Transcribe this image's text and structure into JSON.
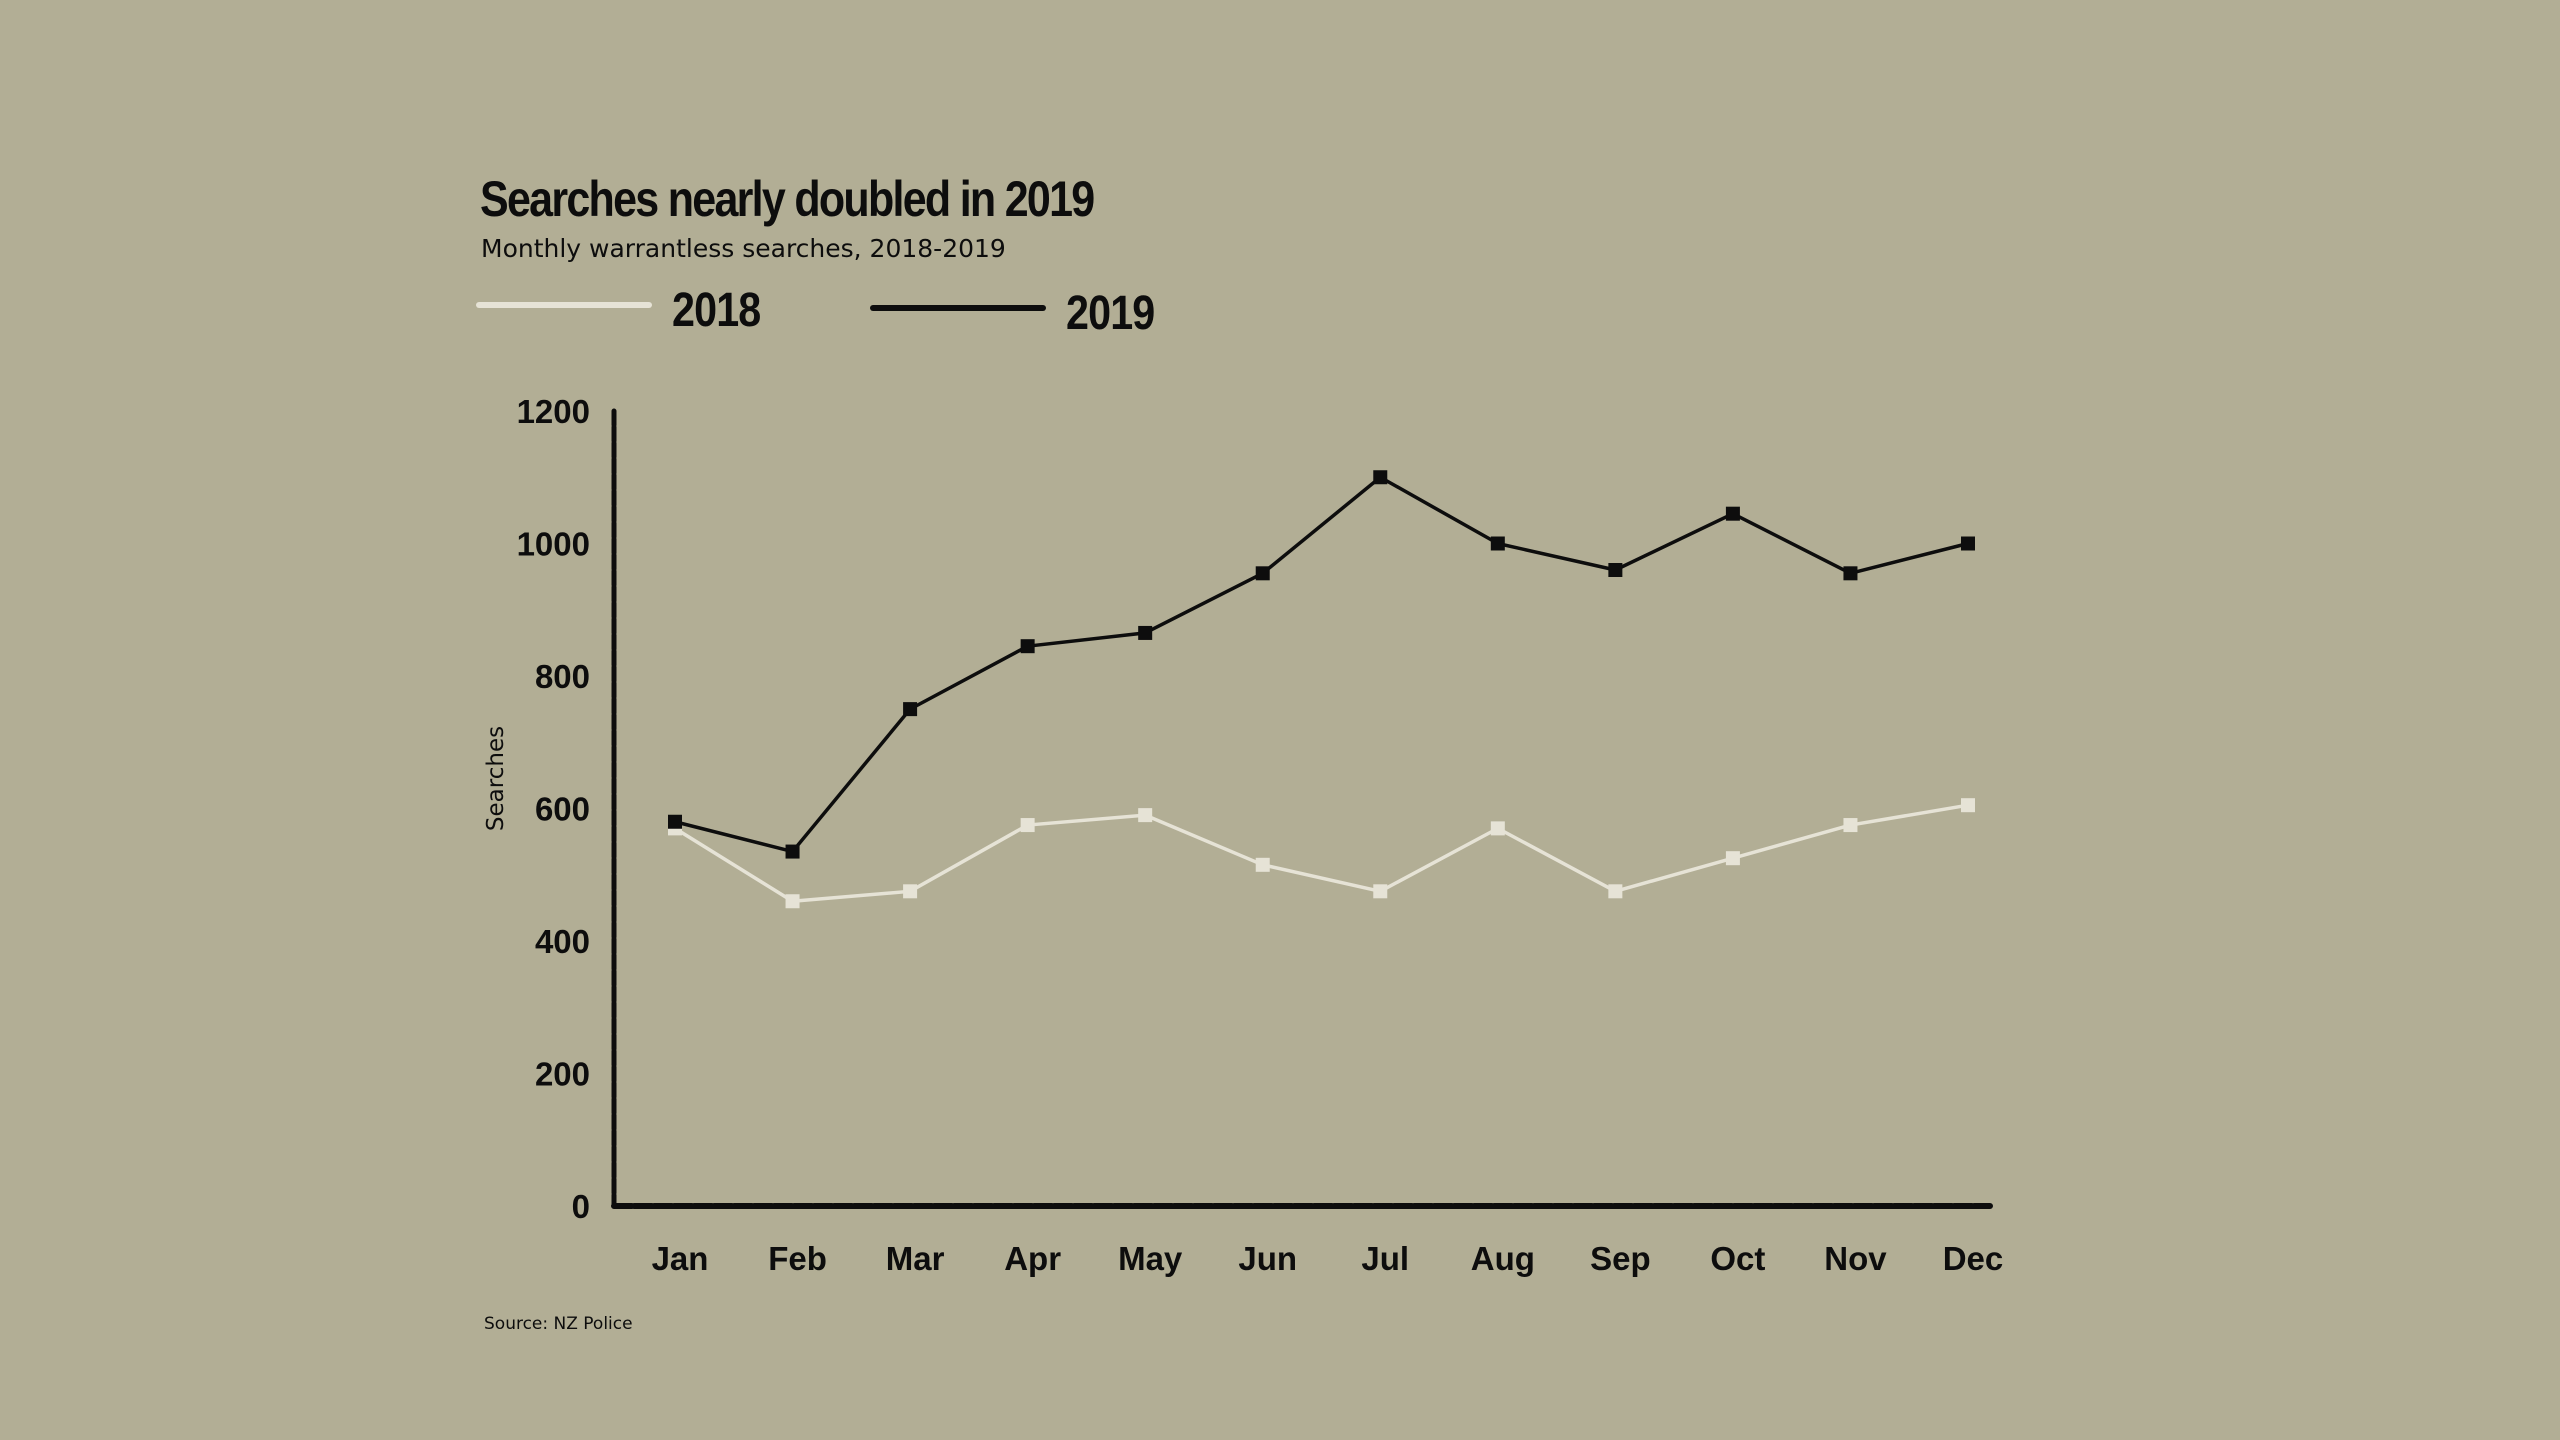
{
  "title": "Searches nearly doubled in 2019",
  "subtitle": "Monthly warrantless searches, 2018-2019",
  "source": "Source: NZ Police",
  "colors": {
    "background": "#b2ae95",
    "series_2018": "#e6e3d6",
    "series_2019": "#0d0d0d"
  },
  "chart_data": {
    "type": "line",
    "title": "Searches nearly doubled in 2019",
    "subtitle": "Monthly warrantless searches, 2018-2019",
    "xlabel": "",
    "ylabel": "Searches",
    "categories": [
      "Jan",
      "Feb",
      "Mar",
      "Apr",
      "May",
      "Jun",
      "Jul",
      "Aug",
      "Sep",
      "Oct",
      "Nov",
      "Dec"
    ],
    "yticks": [
      0,
      200,
      400,
      600,
      800,
      1000,
      1200
    ],
    "ylim": [
      0,
      1200
    ],
    "grid": false,
    "legend": "top-left",
    "series": [
      {
        "name": "2018",
        "values": [
          570,
          460,
          475,
          575,
          590,
          515,
          475,
          570,
          475,
          525,
          575,
          605
        ]
      },
      {
        "name": "2019",
        "values": [
          580,
          535,
          750,
          845,
          865,
          955,
          1100,
          1000,
          960,
          1045,
          955,
          1000
        ]
      }
    ]
  }
}
